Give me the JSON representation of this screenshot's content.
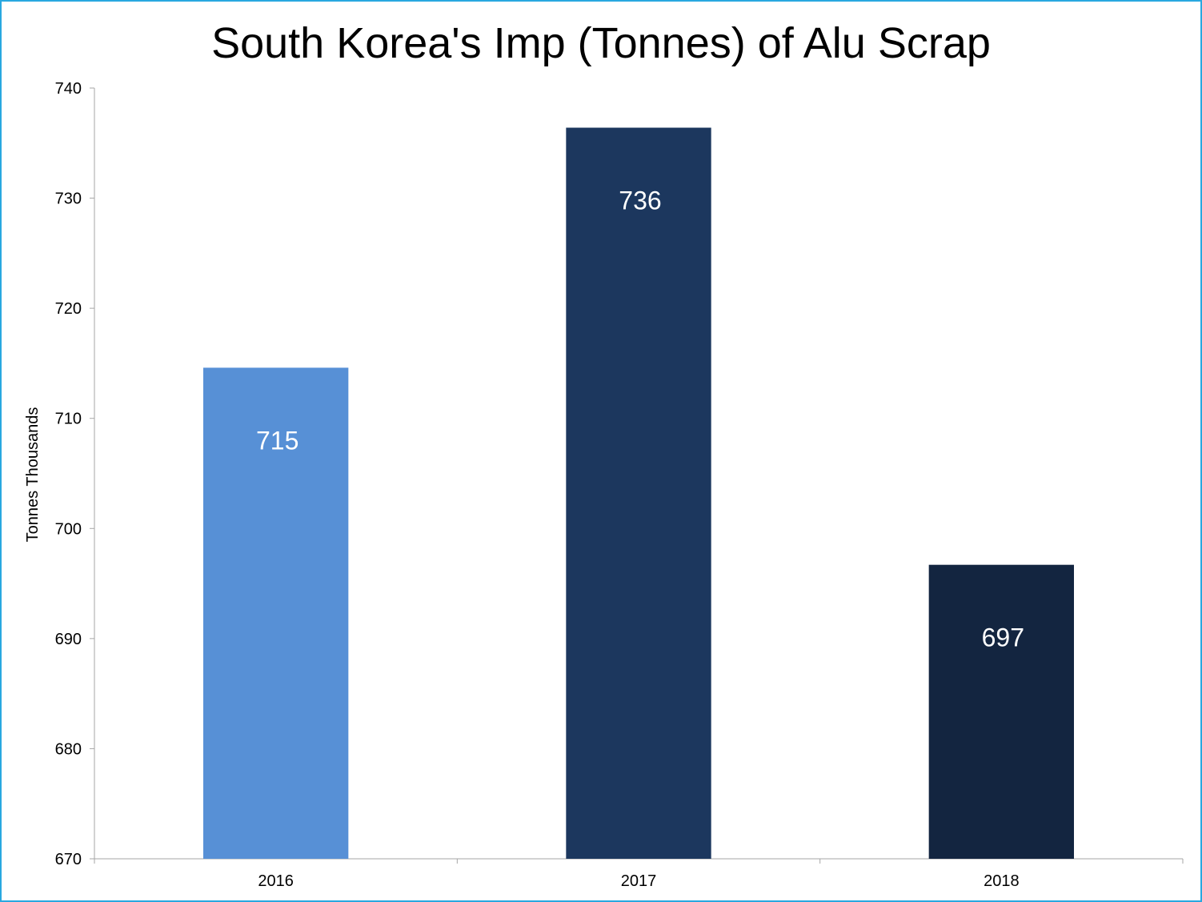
{
  "chart_data": {
    "type": "bar",
    "title": "South Korea's Imp (Tonnes) of Alu Scrap",
    "xlabel": "",
    "ylabel": "Tonnes Thousands",
    "categories": [
      "2016",
      "2017",
      "2018"
    ],
    "values": [
      714.6,
      736.4,
      696.7
    ],
    "data_labels": [
      "715",
      "736",
      "697"
    ],
    "ylim": [
      670,
      740
    ],
    "yticks": [
      "670",
      "680",
      "690",
      "700",
      "710",
      "720",
      "730",
      "740"
    ],
    "bar_colors": [
      "#5790d6",
      "#1c375e",
      "#132540"
    ],
    "grid": false,
    "legend": "none"
  },
  "colors": {
    "frame_border": "#29a8e0",
    "axis": "#a6a6a6",
    "text": "#000000",
    "label_text": "#ffffff"
  }
}
